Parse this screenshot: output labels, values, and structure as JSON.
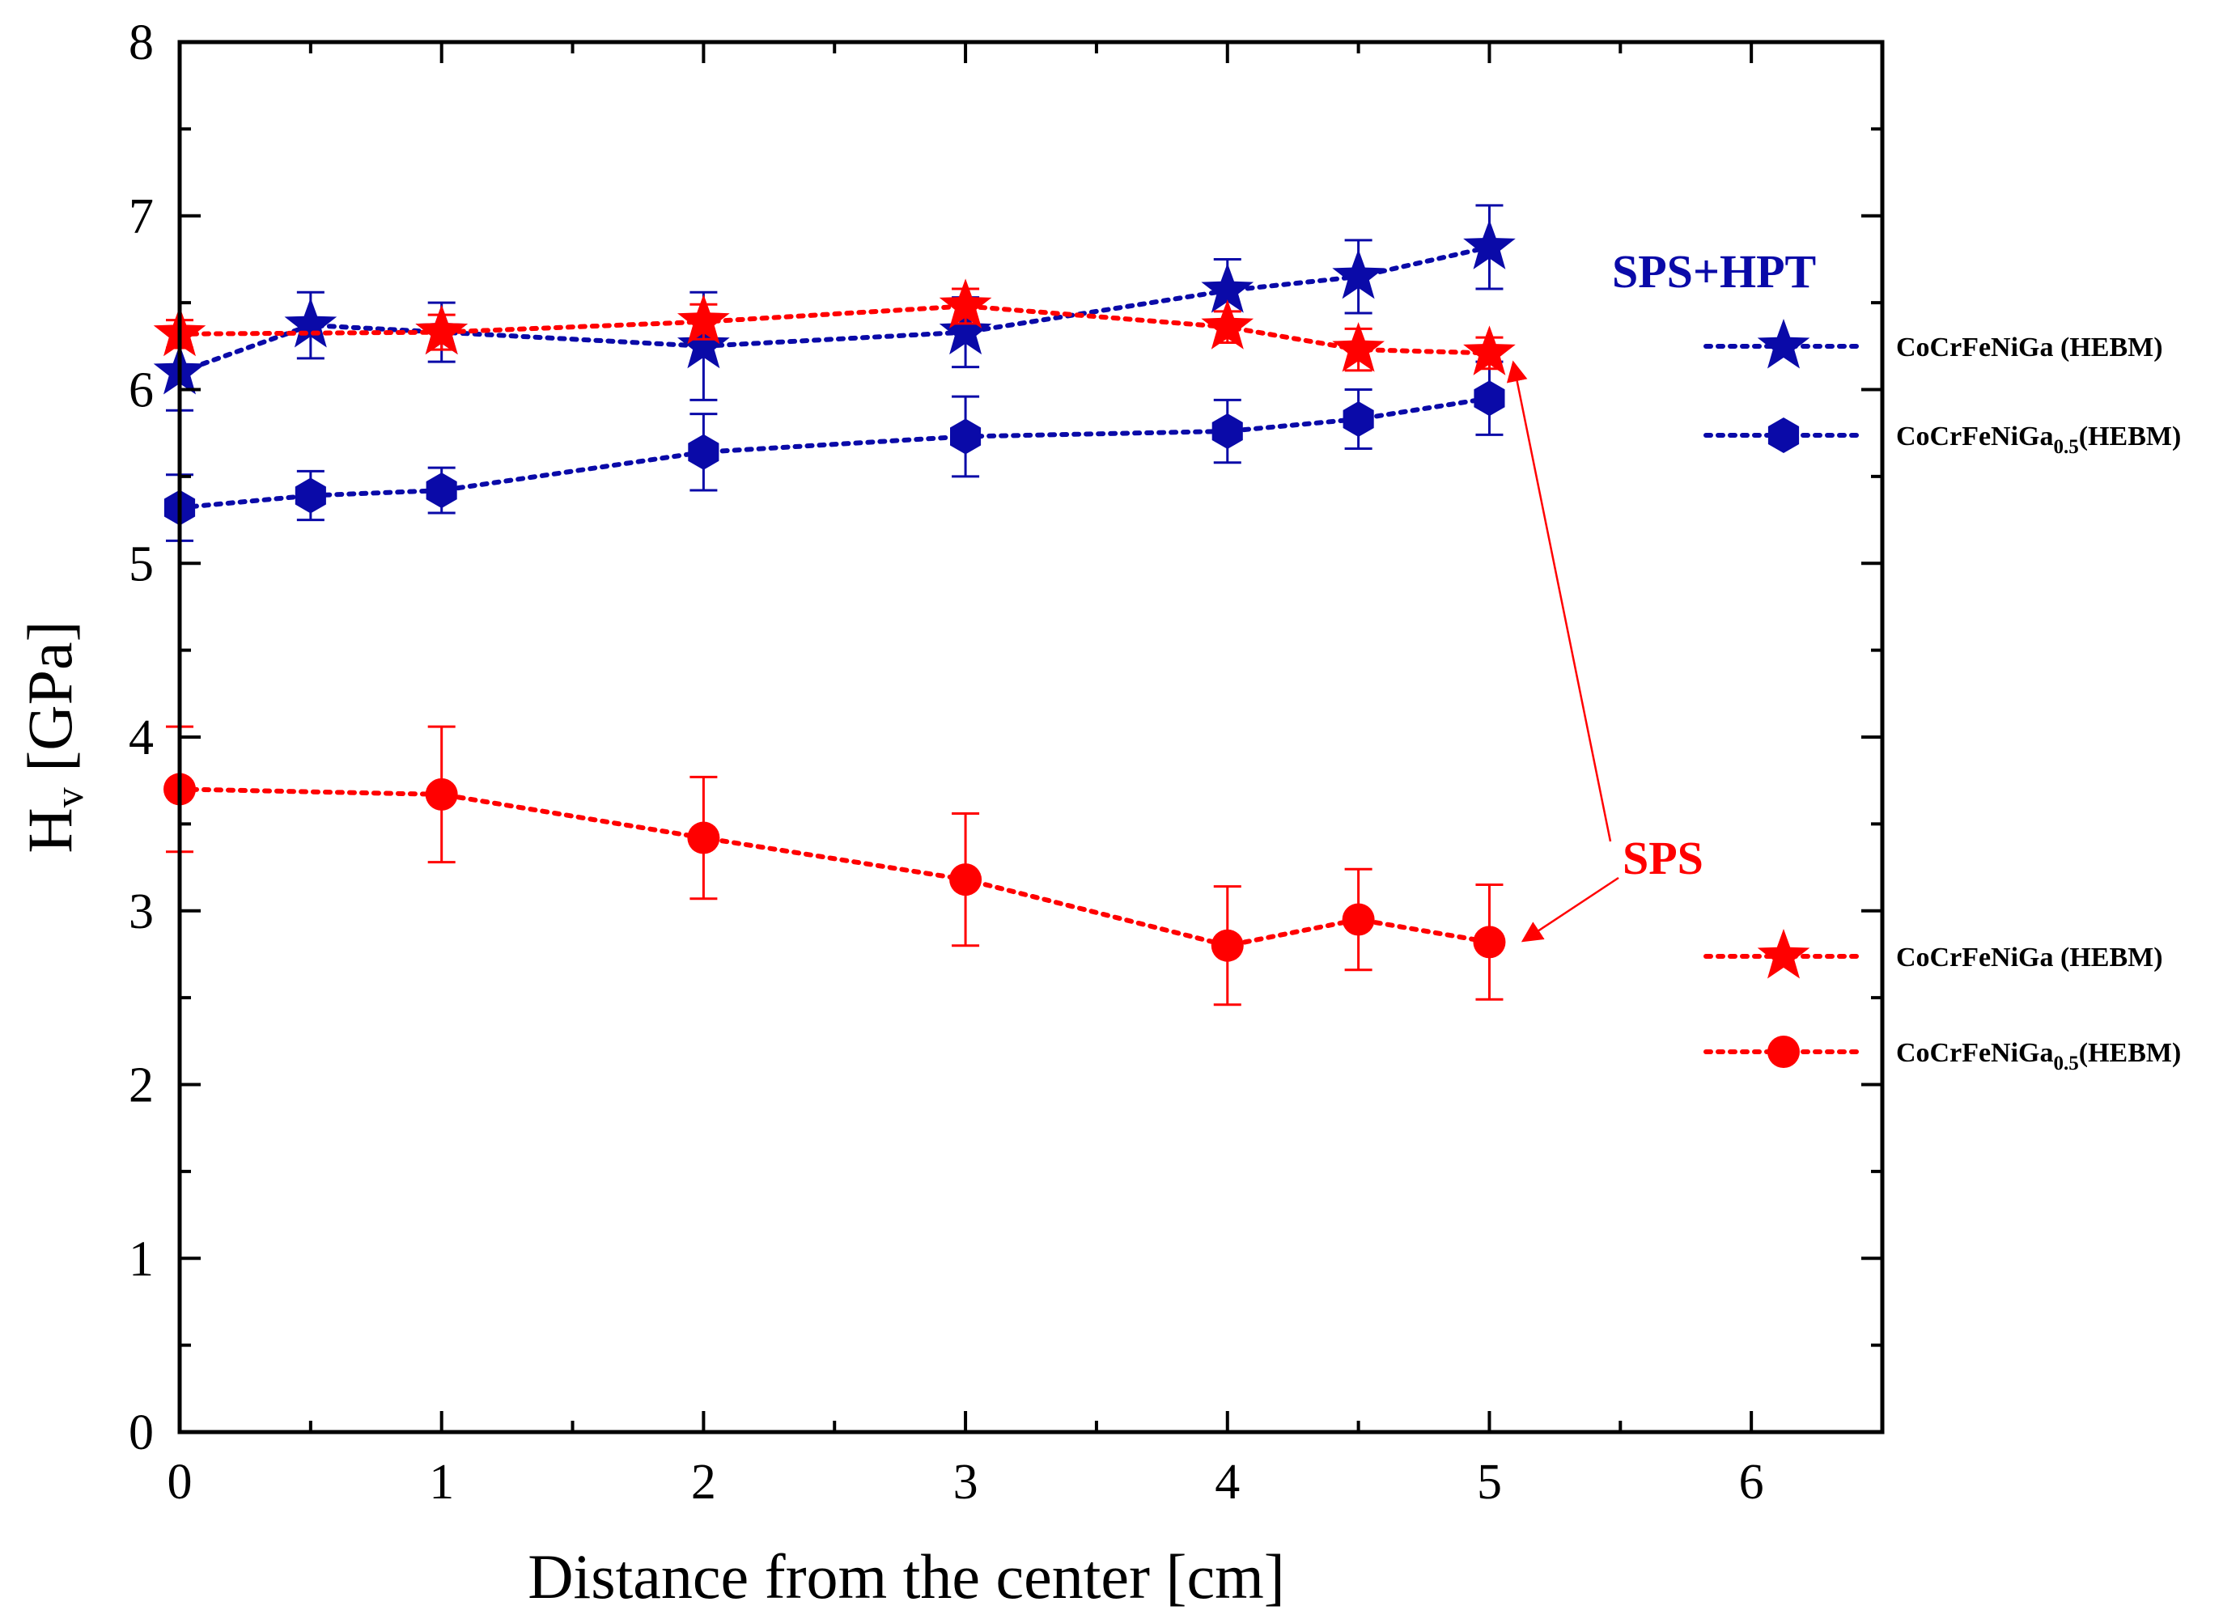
{
  "colors": {
    "blue": "#0a0aa8",
    "red": "#ff0000",
    "axis": "#000000"
  },
  "chart_data": {
    "type": "line",
    "xlabel": "Distance from the center [cm]",
    "ylabel": "H",
    "ylabel_sub": "v",
    "ylabel_unit": " [GPa]",
    "xlim": [
      0,
      6.5
    ],
    "ylim": [
      0,
      8
    ],
    "xticks": [
      0,
      1,
      2,
      3,
      4,
      5,
      6
    ],
    "yticks": [
      0,
      1,
      2,
      3,
      4,
      5,
      6,
      7,
      8
    ],
    "grid": false,
    "legend_position": "right",
    "group_labels": [
      {
        "text": "SPS+HPT",
        "color": "blue"
      },
      {
        "text": "SPS",
        "color": "red"
      }
    ],
    "series": [
      {
        "legend_label": "CoCrFeNiGa (HEBM)",
        "legend_sub": "",
        "color": "blue",
        "marker": "star",
        "line": "dotted",
        "x": [
          0,
          0.5,
          1,
          2,
          3,
          4,
          4.5,
          5
        ],
        "y": [
          6.1,
          6.37,
          6.33,
          6.25,
          6.33,
          6.57,
          6.65,
          6.82
        ],
        "err": [
          0.22,
          0.19,
          0.17,
          0.31,
          0.2,
          0.18,
          0.21,
          0.24
        ]
      },
      {
        "legend_label": "CoCrFeNiGa",
        "legend_sub": "0.5",
        "legend_suffix": "(HEBM)",
        "color": "blue",
        "marker": "hexagon",
        "line": "dotted",
        "x": [
          0,
          0.5,
          1,
          2,
          3,
          4,
          4.5,
          5
        ],
        "y": [
          5.32,
          5.39,
          5.42,
          5.64,
          5.73,
          5.76,
          5.83,
          5.95
        ],
        "err": [
          0.19,
          0.14,
          0.13,
          0.22,
          0.23,
          0.18,
          0.17,
          0.21
        ]
      },
      {
        "legend_label": "CoCrFeNiGa (HEBM)",
        "legend_sub": "",
        "color": "red",
        "marker": "star",
        "line": "dotted",
        "x": [
          0,
          1,
          2,
          3,
          4,
          4.5,
          5
        ],
        "y": [
          6.32,
          6.33,
          6.39,
          6.48,
          6.36,
          6.23,
          6.21
        ],
        "err": [
          0.08,
          0.1,
          0.1,
          0.1,
          0.09,
          0.12,
          0.09
        ]
      },
      {
        "legend_label": "CoCrFeNiGa",
        "legend_sub": "0.5",
        "legend_suffix": "(HEBM)",
        "color": "red",
        "marker": "circle",
        "line": "dotted",
        "x": [
          0,
          1,
          2,
          3,
          4,
          4.5,
          5
        ],
        "y": [
          3.7,
          3.67,
          3.42,
          3.18,
          2.8,
          2.95,
          2.82
        ],
        "err": [
          0.36,
          0.39,
          0.35,
          0.38,
          0.34,
          0.29,
          0.33
        ]
      }
    ]
  }
}
